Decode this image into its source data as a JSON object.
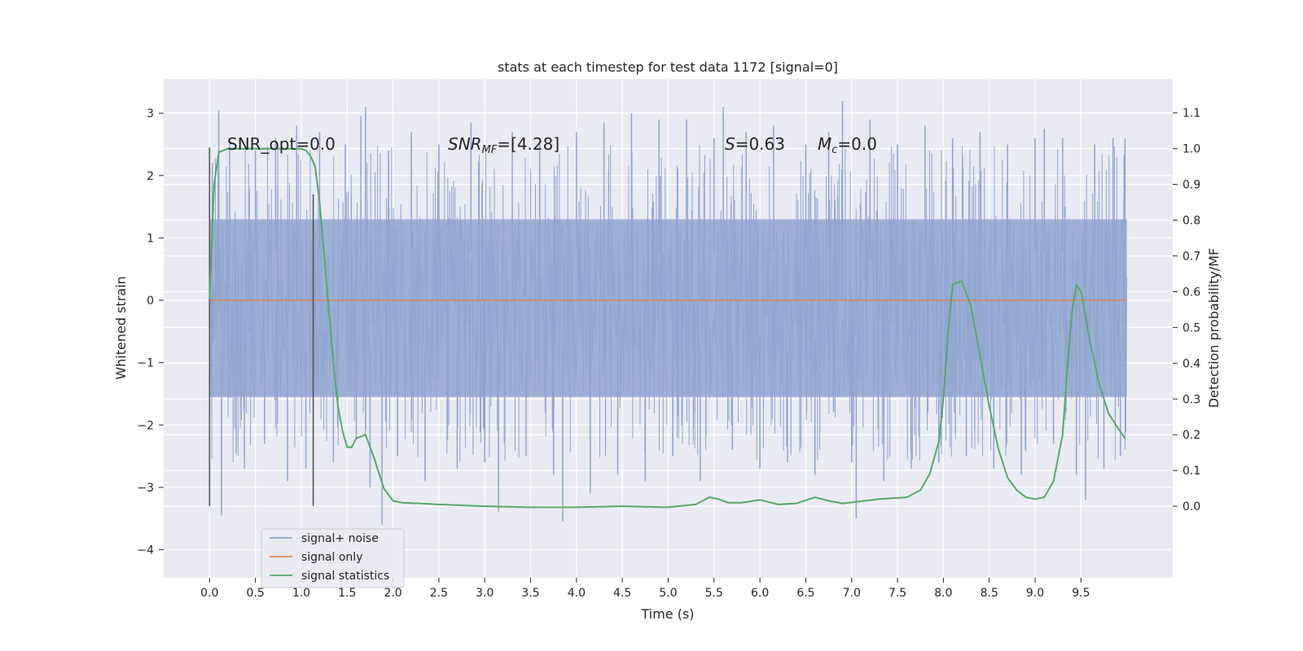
{
  "chart_data": {
    "type": "line",
    "title": "stats at each timestep for test data 1172 [signal=0]",
    "xlabel": "Time (s)",
    "ylabel": "Whitened strain",
    "y2label": "Detection probability/MF",
    "xlim": [
      -0.5,
      10.5
    ],
    "ylim": [
      -4.45,
      3.55
    ],
    "y2lim": [
      -0.2,
      1.195
    ],
    "x_ticks": [
      0.0,
      0.5,
      1.0,
      1.5,
      2.0,
      2.5,
      3.0,
      3.5,
      4.0,
      4.5,
      5.0,
      5.5,
      6.0,
      6.5,
      7.0,
      7.5,
      8.0,
      8.5,
      9.0,
      9.5
    ],
    "x_tick_labels": [
      "0.0",
      "0.5",
      "1.0",
      "1.5",
      "2.0",
      "2.5",
      "3.0",
      "3.5",
      "4.0",
      "4.5",
      "5.0",
      "5.5",
      "6.0",
      "6.5",
      "7.0",
      "7.5",
      "8.0",
      "8.5",
      "9.0",
      "9.5"
    ],
    "y_ticks": [
      -4,
      -3,
      -2,
      -1,
      0,
      1,
      2,
      3
    ],
    "y_tick_labels": [
      "−4",
      "−3",
      "−2",
      "−1",
      "0",
      "1",
      "2",
      "3"
    ],
    "y2_ticks": [
      0.0,
      0.1,
      0.2,
      0.3,
      0.4,
      0.5,
      0.6,
      0.7,
      0.8,
      0.9,
      1.0,
      1.1
    ],
    "y2_tick_labels": [
      "0.0",
      "0.1",
      "0.2",
      "0.3",
      "0.4",
      "0.5",
      "0.6",
      "0.7",
      "0.8",
      "0.9",
      "1.0",
      "1.1"
    ],
    "grid": true,
    "legend_position": "lower-left",
    "annotations": {
      "snr_opt": "SNR_opt=0.0",
      "snr_mf_base": "SNR",
      "snr_mf_sub": "MF",
      "snr_mf_value": "=[4.28]",
      "s_sym": "S",
      "s_value": "=0.63",
      "mc_base": "M",
      "mc_sub": "c",
      "mc_value": "=0.0"
    },
    "vertical_markers": [
      {
        "x": 0.0,
        "y_range": [
          -3.3,
          2.45
        ]
      },
      {
        "x": 1.13,
        "y_range": [
          -3.3,
          1.7
        ]
      }
    ],
    "series": [
      {
        "name": "signal+ noise",
        "color": "#8fa4cf",
        "role": "noise-band",
        "x_range": [
          0.0,
          10.0
        ],
        "typical_range": [
          -1.6,
          1.35
        ],
        "peak_values": [
          [
            0.03,
            2.2
          ],
          [
            0.1,
            3.05
          ],
          [
            0.13,
            -3.45
          ],
          [
            0.22,
            2.6
          ],
          [
            0.38,
            -2.7
          ],
          [
            0.5,
            2.4
          ],
          [
            0.6,
            -2.3
          ],
          [
            0.72,
            2.6
          ],
          [
            0.85,
            -2.9
          ],
          [
            0.95,
            2.8
          ],
          [
            1.05,
            -2.7
          ],
          [
            1.2,
            2.7
          ],
          [
            1.35,
            -2.6
          ],
          [
            1.48,
            2.5
          ],
          [
            1.6,
            -2.2
          ],
          [
            1.65,
            2.95
          ],
          [
            1.7,
            3.1
          ],
          [
            1.75,
            -3.0
          ],
          [
            1.88,
            -3.6
          ],
          [
            1.95,
            2.4
          ],
          [
            2.05,
            -2.5
          ],
          [
            2.2,
            2.7
          ],
          [
            2.35,
            -2.9
          ],
          [
            2.5,
            2.5
          ],
          [
            2.7,
            -2.7
          ],
          [
            2.85,
            2.85
          ],
          [
            3.0,
            -2.6
          ],
          [
            3.15,
            -3.4
          ],
          [
            3.3,
            2.7
          ],
          [
            3.45,
            -2.5
          ],
          [
            3.6,
            2.6
          ],
          [
            3.75,
            -2.8
          ],
          [
            3.85,
            -3.55
          ],
          [
            4.0,
            2.7
          ],
          [
            4.15,
            -3.1
          ],
          [
            4.3,
            2.85
          ],
          [
            4.45,
            -2.8
          ],
          [
            4.6,
            3.0
          ],
          [
            4.75,
            -2.9
          ],
          [
            4.9,
            2.9
          ],
          [
            5.05,
            -2.5
          ],
          [
            5.2,
            2.9
          ],
          [
            5.35,
            -2.9
          ],
          [
            5.5,
            2.6
          ],
          [
            5.6,
            3.1
          ],
          [
            5.7,
            -2.4
          ],
          [
            5.85,
            2.7
          ],
          [
            6.0,
            -2.7
          ],
          [
            6.15,
            2.8
          ],
          [
            6.3,
            -2.6
          ],
          [
            6.5,
            2.5
          ],
          [
            6.6,
            -2.8
          ],
          [
            6.75,
            2.7
          ],
          [
            6.9,
            3.2
          ],
          [
            7.0,
            -2.6
          ],
          [
            7.05,
            -3.5
          ],
          [
            7.2,
            2.9
          ],
          [
            7.35,
            -2.9
          ],
          [
            7.5,
            2.5
          ],
          [
            7.65,
            -2.7
          ],
          [
            7.8,
            2.8
          ],
          [
            7.95,
            -2.6
          ],
          [
            8.1,
            2.6
          ],
          [
            8.25,
            -2.5
          ],
          [
            8.4,
            2.7
          ],
          [
            8.55,
            -2.7
          ],
          [
            8.7,
            2.5
          ],
          [
            8.85,
            -2.8
          ],
          [
            9.0,
            2.6
          ],
          [
            9.1,
            2.75
          ],
          [
            9.2,
            -2.3
          ],
          [
            9.3,
            2.6
          ],
          [
            9.45,
            -2.8
          ],
          [
            9.55,
            -3.2
          ],
          [
            9.65,
            2.5
          ],
          [
            9.75,
            -2.7
          ],
          [
            9.85,
            2.6
          ],
          [
            9.93,
            -2.5
          ],
          [
            9.98,
            2.6
          ]
        ]
      },
      {
        "name": "signal only",
        "color": "#dd8452",
        "x": [
          0.0,
          10.0
        ],
        "y": [
          0.0,
          0.0
        ]
      },
      {
        "name": "signal statistics",
        "color": "#55a868",
        "axis": "right",
        "x": [
          0.0,
          0.05,
          0.1,
          0.15,
          0.2,
          0.3,
          0.5,
          0.7,
          0.9,
          1.0,
          1.05,
          1.1,
          1.15,
          1.2,
          1.25,
          1.3,
          1.35,
          1.4,
          1.45,
          1.5,
          1.55,
          1.6,
          1.65,
          1.7,
          1.8,
          1.9,
          2.0,
          2.1,
          2.5,
          3.0,
          3.5,
          4.0,
          4.5,
          5.0,
          5.3,
          5.45,
          5.55,
          5.65,
          5.8,
          6.0,
          6.2,
          6.4,
          6.6,
          6.75,
          6.9,
          7.05,
          7.3,
          7.6,
          7.75,
          7.85,
          7.95,
          8.0,
          8.05,
          8.1,
          8.2,
          8.3,
          8.4,
          8.5,
          8.6,
          8.7,
          8.8,
          8.9,
          9.0,
          9.1,
          9.2,
          9.3,
          9.35,
          9.4,
          9.45,
          9.5,
          9.6,
          9.7,
          9.8,
          9.9,
          9.98
        ],
        "y": [
          0.58,
          0.9,
          0.99,
          0.995,
          1.0,
          1.0,
          1.0,
          1.0,
          1.0,
          1.0,
          0.995,
          0.98,
          0.95,
          0.85,
          0.7,
          0.55,
          0.4,
          0.28,
          0.21,
          0.165,
          0.165,
          0.19,
          0.195,
          0.2,
          0.13,
          0.05,
          0.015,
          0.01,
          0.005,
          0.0,
          -0.003,
          -0.003,
          0.0,
          -0.003,
          0.005,
          0.025,
          0.02,
          0.01,
          0.01,
          0.018,
          0.005,
          0.008,
          0.025,
          0.015,
          0.008,
          0.012,
          0.02,
          0.025,
          0.045,
          0.09,
          0.18,
          0.3,
          0.48,
          0.62,
          0.63,
          0.56,
          0.42,
          0.28,
          0.16,
          0.08,
          0.045,
          0.025,
          0.02,
          0.025,
          0.07,
          0.2,
          0.38,
          0.54,
          0.62,
          0.6,
          0.46,
          0.34,
          0.26,
          0.22,
          0.19
        ]
      }
    ]
  }
}
